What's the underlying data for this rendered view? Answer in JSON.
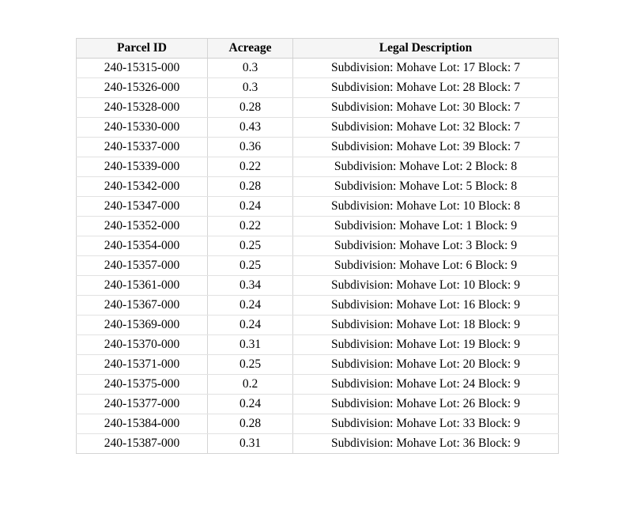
{
  "page": {
    "background": "#ffffff"
  },
  "table": {
    "columns": [
      "Parcel ID",
      "Acreage",
      "Legal Description"
    ],
    "rows": [
      {
        "parcel_id": "240-15315-000",
        "acreage": "0.3",
        "legal_description": "Subdivision: Mohave Lot: 17 Block: 7"
      },
      {
        "parcel_id": "240-15326-000",
        "acreage": "0.3",
        "legal_description": "Subdivision: Mohave Lot: 28 Block: 7"
      },
      {
        "parcel_id": "240-15328-000",
        "acreage": "0.28",
        "legal_description": "Subdivision: Mohave Lot: 30 Block: 7"
      },
      {
        "parcel_id": "240-15330-000",
        "acreage": "0.43",
        "legal_description": "Subdivision: Mohave Lot: 32 Block: 7"
      },
      {
        "parcel_id": "240-15337-000",
        "acreage": "0.36",
        "legal_description": "Subdivision: Mohave Lot: 39 Block: 7"
      },
      {
        "parcel_id": "240-15339-000",
        "acreage": "0.22",
        "legal_description": "Subdivision: Mohave Lot: 2 Block: 8"
      },
      {
        "parcel_id": "240-15342-000",
        "acreage": "0.28",
        "legal_description": "Subdivision: Mohave Lot: 5 Block: 8"
      },
      {
        "parcel_id": "240-15347-000",
        "acreage": "0.24",
        "legal_description": "Subdivision: Mohave Lot: 10 Block: 8"
      },
      {
        "parcel_id": "240-15352-000",
        "acreage": "0.22",
        "legal_description": "Subdivision: Mohave Lot: 1 Block: 9"
      },
      {
        "parcel_id": "240-15354-000",
        "acreage": "0.25",
        "legal_description": "Subdivision: Mohave Lot: 3 Block: 9"
      },
      {
        "parcel_id": "240-15357-000",
        "acreage": "0.25",
        "legal_description": "Subdivision: Mohave Lot: 6 Block: 9"
      },
      {
        "parcel_id": "240-15361-000",
        "acreage": "0.34",
        "legal_description": "Subdivision: Mohave Lot: 10 Block: 9"
      },
      {
        "parcel_id": "240-15367-000",
        "acreage": "0.24",
        "legal_description": "Subdivision: Mohave Lot: 16 Block: 9"
      },
      {
        "parcel_id": "240-15369-000",
        "acreage": "0.24",
        "legal_description": "Subdivision: Mohave Lot: 18 Block: 9"
      },
      {
        "parcel_id": "240-15370-000",
        "acreage": "0.31",
        "legal_description": "Subdivision: Mohave Lot: 19 Block: 9"
      },
      {
        "parcel_id": "240-15371-000",
        "acreage": "0.25",
        "legal_description": "Subdivision: Mohave Lot: 20 Block: 9"
      },
      {
        "parcel_id": "240-15375-000",
        "acreage": "0.2",
        "legal_description": "Subdivision: Mohave Lot: 24 Block: 9"
      },
      {
        "parcel_id": "240-15377-000",
        "acreage": "0.24",
        "legal_description": "Subdivision: Mohave Lot: 26 Block: 9"
      },
      {
        "parcel_id": "240-15384-000",
        "acreage": "0.28",
        "legal_description": "Subdivision: Mohave Lot: 33 Block: 9"
      },
      {
        "parcel_id": "240-15387-000",
        "acreage": "0.31",
        "legal_description": "Subdivision: Mohave Lot: 36 Block: 9"
      }
    ],
    "style": {
      "border_vertical": "#d4d4d4",
      "border_horizontal": "#e2e2e2",
      "header_border": "#cfcfcf",
      "header_bg": "#f5f5f5",
      "text_color": "#000000"
    }
  }
}
